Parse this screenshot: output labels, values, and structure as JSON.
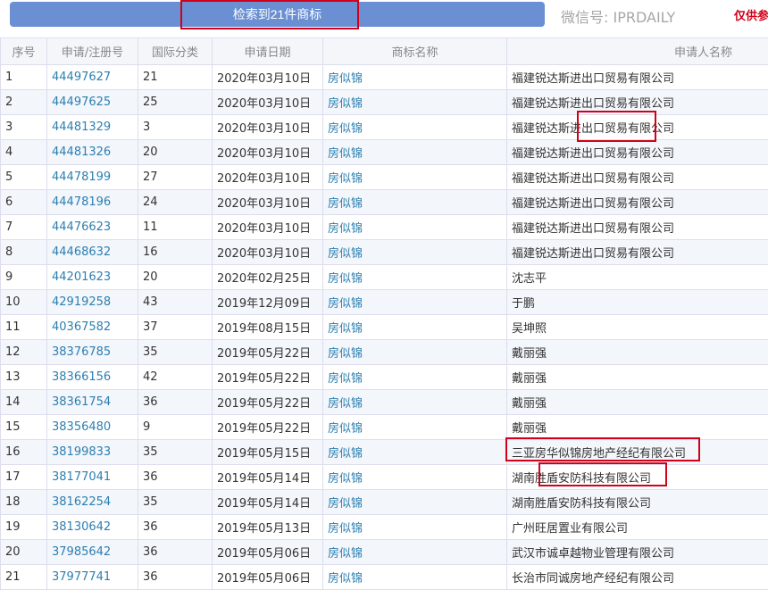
{
  "toolbar": {
    "result_button": "检索到21件商标",
    "notice": "仅供参"
  },
  "columns": [
    "序号",
    "申请/注册号",
    "国际分类",
    "申请日期",
    "商标名称",
    "申请人名称"
  ],
  "rows": [
    [
      "1",
      "44497627",
      "21",
      "2020年03月10日",
      "房似锦",
      "福建锐达斯进出口贸易有限公司"
    ],
    [
      "2",
      "44497625",
      "25",
      "2020年03月10日",
      "房似锦",
      "福建锐达斯进出口贸易有限公司"
    ],
    [
      "3",
      "44481329",
      "3",
      "2020年03月10日",
      "房似锦",
      "福建锐达斯进出口贸易有限公司"
    ],
    [
      "4",
      "44481326",
      "20",
      "2020年03月10日",
      "房似锦",
      "福建锐达斯进出口贸易有限公司"
    ],
    [
      "5",
      "44478199",
      "27",
      "2020年03月10日",
      "房似锦",
      "福建锐达斯进出口贸易有限公司"
    ],
    [
      "6",
      "44478196",
      "24",
      "2020年03月10日",
      "房似锦",
      "福建锐达斯进出口贸易有限公司"
    ],
    [
      "7",
      "44476623",
      "11",
      "2020年03月10日",
      "房似锦",
      "福建锐达斯进出口贸易有限公司"
    ],
    [
      "8",
      "44468632",
      "16",
      "2020年03月10日",
      "房似锦",
      "福建锐达斯进出口贸易有限公司"
    ],
    [
      "9",
      "44201623",
      "20",
      "2020年02月25日",
      "房似锦",
      "沈志平"
    ],
    [
      "10",
      "42919258",
      "43",
      "2019年12月09日",
      "房似锦",
      "于鹏"
    ],
    [
      "11",
      "40367582",
      "37",
      "2019年08月15日",
      "房似锦",
      "吴坤照"
    ],
    [
      "12",
      "38376785",
      "35",
      "2019年05月22日",
      "房似锦",
      "戴丽强"
    ],
    [
      "13",
      "38366156",
      "42",
      "2019年05月22日",
      "房似锦",
      "戴丽强"
    ],
    [
      "14",
      "38361754",
      "36",
      "2019年05月22日",
      "房似锦",
      "戴丽强"
    ],
    [
      "15",
      "38356480",
      "9",
      "2019年05月22日",
      "房似锦",
      "戴丽强"
    ],
    [
      "16",
      "38199833",
      "35",
      "2019年05月15日",
      "房似锦",
      "三亚房华似锦房地产经纪有限公司"
    ],
    [
      "17",
      "38177041",
      "36",
      "2019年05月14日",
      "房似锦",
      "湖南胜盾安防科技有限公司"
    ],
    [
      "18",
      "38162254",
      "35",
      "2019年05月14日",
      "房似锦",
      "湖南胜盾安防科技有限公司"
    ],
    [
      "19",
      "38130642",
      "36",
      "2019年05月13日",
      "房似锦",
      "广州旺居置业有限公司"
    ],
    [
      "20",
      "37985642",
      "36",
      "2019年05月06日",
      "房似锦",
      "武汉市诚卓越物业管理有限公司"
    ],
    [
      "21",
      "37977741",
      "36",
      "2019年05月06日",
      "房似锦",
      "长治市同诚房地产经纪有限公司"
    ]
  ],
  "watermark": "微信号: IPRDAILY",
  "colors": {
    "button": "#6a8fd2",
    "link": "#2c7fb0",
    "highlight": "#d0021b"
  }
}
